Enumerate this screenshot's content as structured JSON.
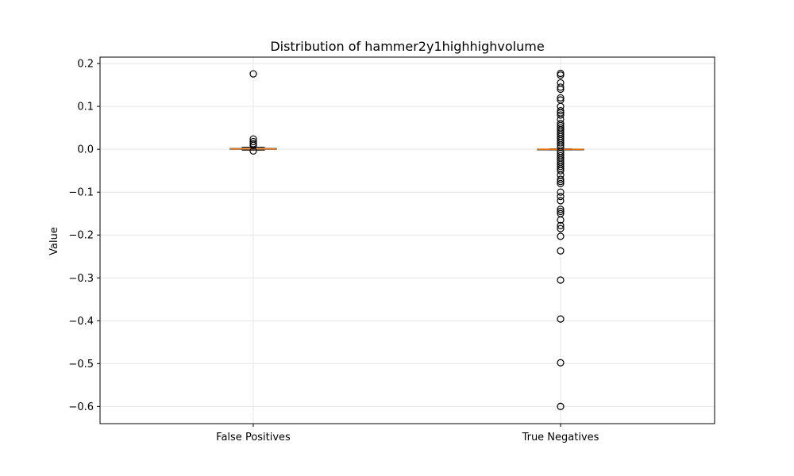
{
  "chart_data": {
    "type": "box",
    "title": "Distribution of hammer2y1highhighvolume",
    "xlabel": "",
    "ylabel": "Value",
    "categories": [
      "False Positives",
      "True Negatives"
    ],
    "ylim": [
      -0.64,
      0.215
    ],
    "yticks": [
      0.2,
      0.1,
      0.0,
      -0.1,
      -0.2,
      -0.3,
      -0.4,
      -0.5,
      -0.6
    ],
    "ytick_labels": [
      "0.2",
      "0.1",
      "0.0",
      "−0.1",
      "−0.2",
      "−0.3",
      "−0.4",
      "−0.5",
      "−0.6"
    ],
    "grid": true,
    "boxes": [
      {
        "name": "False Positives",
        "whisker_low": -0.002,
        "q1": 0.0,
        "median": 0.001,
        "q3": 0.002,
        "whisker_high": 0.005,
        "outliers": [
          0.176,
          0.024,
          0.018,
          0.013,
          0.009,
          -0.004
        ]
      },
      {
        "name": "True Negatives",
        "whisker_low": -0.001,
        "q1": 0.0,
        "median": 0.0,
        "q3": 0.0005,
        "whisker_high": 0.001,
        "outliers": [
          0.177,
          0.173,
          0.155,
          0.145,
          0.14,
          0.12,
          0.115,
          0.1,
          0.09,
          0.085,
          0.08,
          0.07,
          0.06,
          0.055,
          0.05,
          0.045,
          0.04,
          0.035,
          0.03,
          0.025,
          0.02,
          0.015,
          0.01,
          0.005,
          -0.005,
          -0.01,
          -0.015,
          -0.02,
          -0.025,
          -0.03,
          -0.035,
          -0.04,
          -0.045,
          -0.05,
          -0.06,
          -0.07,
          -0.075,
          -0.08,
          -0.1,
          -0.11,
          -0.12,
          -0.14,
          -0.145,
          -0.15,
          -0.165,
          -0.178,
          -0.185,
          -0.203,
          -0.237,
          -0.305,
          -0.396,
          -0.498,
          -0.6
        ]
      }
    ],
    "colors": {
      "box_edge": "#000000",
      "median_line": "#ff7f0e",
      "outlier_edge": "#000000",
      "grid": "#e6e6e6",
      "axis": "#000000"
    }
  }
}
